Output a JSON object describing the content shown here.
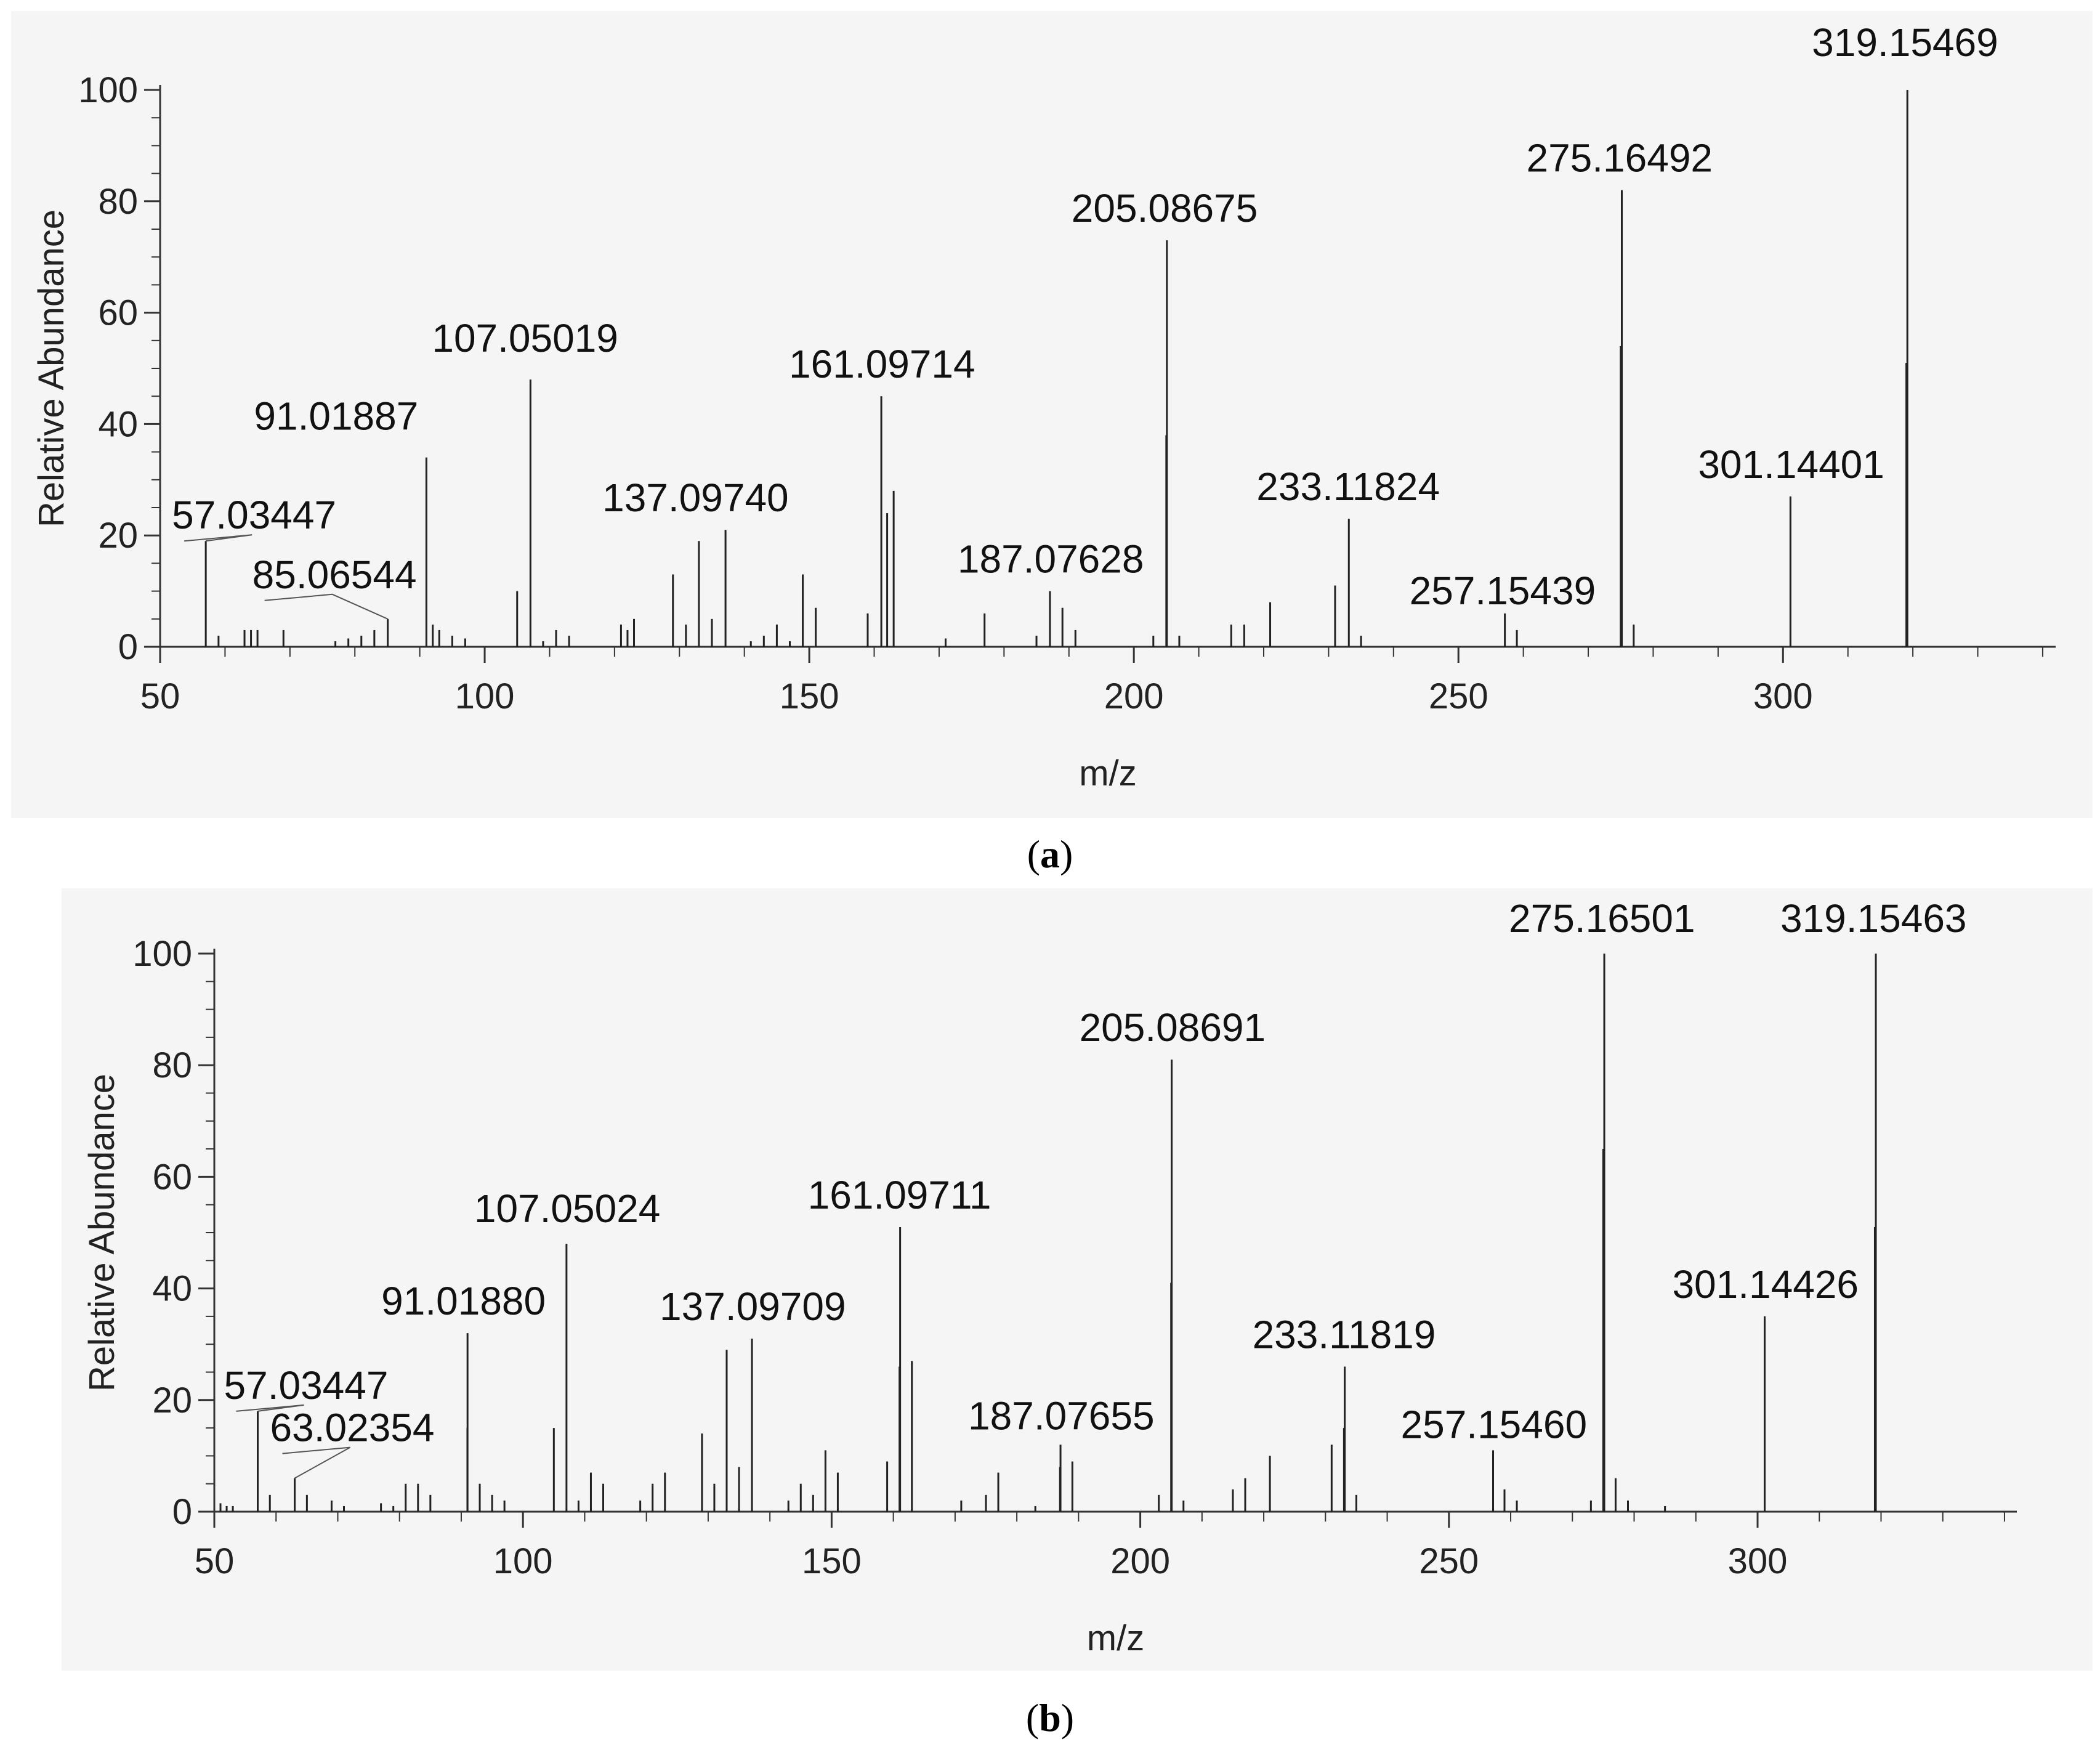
{
  "chart_data": [
    {
      "type": "bar",
      "panel_label": "a",
      "xlabel": "m/z",
      "ylabel": "Relative Abundance",
      "xlim": [
        50,
        342
      ],
      "ylim": [
        0,
        100
      ],
      "xticks": [
        50,
        100,
        150,
        200,
        250,
        300
      ],
      "yticks": [
        0,
        20,
        40,
        60,
        80,
        100
      ],
      "grid": false,
      "labeled_peaks": [
        {
          "mz": 57.03447,
          "intensity": 19,
          "label": "57.03447"
        },
        {
          "mz": 85.06544,
          "intensity": 5,
          "label": "85.06544"
        },
        {
          "mz": 91.01887,
          "intensity": 34,
          "label": "91.01887"
        },
        {
          "mz": 107.05019,
          "intensity": 48,
          "label": "107.05019"
        },
        {
          "mz": 137.0974,
          "intensity": 21,
          "label": "137.09740"
        },
        {
          "mz": 161.09714,
          "intensity": 45,
          "label": "161.09714"
        },
        {
          "mz": 187.07628,
          "intensity": 10,
          "label": "187.07628"
        },
        {
          "mz": 205.08675,
          "intensity": 73,
          "label": "205.08675"
        },
        {
          "mz": 233.11824,
          "intensity": 23,
          "label": "233.11824"
        },
        {
          "mz": 257.15439,
          "intensity": 6,
          "label": "257.15439"
        },
        {
          "mz": 275.16492,
          "intensity": 82,
          "label": "275.16492"
        },
        {
          "mz": 301.14401,
          "intensity": 27,
          "label": "301.14401"
        },
        {
          "mz": 319.15469,
          "intensity": 100,
          "label": "319.15469"
        }
      ],
      "minor_peaks": [
        [
          59,
          2
        ],
        [
          63,
          3
        ],
        [
          64,
          3
        ],
        [
          65,
          3
        ],
        [
          69,
          3
        ],
        [
          77,
          1
        ],
        [
          79,
          1.5
        ],
        [
          81,
          2
        ],
        [
          83,
          3
        ],
        [
          92,
          4
        ],
        [
          93,
          3
        ],
        [
          95,
          2
        ],
        [
          97,
          1.5
        ],
        [
          105,
          10
        ],
        [
          109,
          1
        ],
        [
          111,
          3
        ],
        [
          113,
          2
        ],
        [
          121,
          4
        ],
        [
          122,
          3
        ],
        [
          123,
          5
        ],
        [
          129,
          13
        ],
        [
          131,
          4
        ],
        [
          133,
          19
        ],
        [
          135,
          5
        ],
        [
          141,
          1
        ],
        [
          143,
          2
        ],
        [
          145,
          4
        ],
        [
          147,
          1
        ],
        [
          149,
          13
        ],
        [
          151,
          7
        ],
        [
          159,
          6
        ],
        [
          162,
          24
        ],
        [
          163,
          28
        ],
        [
          171,
          1.5
        ],
        [
          177,
          6
        ],
        [
          185,
          2
        ],
        [
          189,
          7
        ],
        [
          191,
          3
        ],
        [
          203,
          2
        ],
        [
          205,
          38
        ],
        [
          207,
          2
        ],
        [
          215,
          4
        ],
        [
          217,
          4
        ],
        [
          221,
          8
        ],
        [
          231,
          11
        ],
        [
          235,
          2
        ],
        [
          259,
          3
        ],
        [
          275,
          54
        ],
        [
          277,
          4
        ],
        [
          319,
          51
        ]
      ]
    },
    {
      "type": "bar",
      "panel_label": "b",
      "xlabel": "m/z",
      "ylabel": "Relative Abundance",
      "xlim": [
        50,
        342
      ],
      "ylim": [
        0,
        100
      ],
      "xticks": [
        50,
        100,
        150,
        200,
        250,
        300
      ],
      "yticks": [
        0,
        20,
        40,
        60,
        80,
        100
      ],
      "grid": false,
      "labeled_peaks": [
        {
          "mz": 57.03447,
          "intensity": 18,
          "label": "57.03447"
        },
        {
          "mz": 63.02354,
          "intensity": 6,
          "label": "63.02354"
        },
        {
          "mz": 91.0188,
          "intensity": 32,
          "label": "91.01880"
        },
        {
          "mz": 107.05024,
          "intensity": 48,
          "label": "107.05024"
        },
        {
          "mz": 137.09709,
          "intensity": 31,
          "label": "137.09709"
        },
        {
          "mz": 161.09711,
          "intensity": 51,
          "label": "161.09711"
        },
        {
          "mz": 187.07655,
          "intensity": 12,
          "label": "187.07655"
        },
        {
          "mz": 205.08691,
          "intensity": 81,
          "label": "205.08691"
        },
        {
          "mz": 233.11819,
          "intensity": 26,
          "label": "233.11819"
        },
        {
          "mz": 257.1546,
          "intensity": 11,
          "label": "257.15460"
        },
        {
          "mz": 275.16501,
          "intensity": 100,
          "label": "275.16501"
        },
        {
          "mz": 301.14426,
          "intensity": 35,
          "label": "301.14426"
        },
        {
          "mz": 319.15463,
          "intensity": 100,
          "label": "319.15463"
        }
      ],
      "minor_peaks": [
        [
          51,
          1.5
        ],
        [
          52,
          1
        ],
        [
          53,
          1
        ],
        [
          59,
          3
        ],
        [
          65,
          3
        ],
        [
          69,
          2
        ],
        [
          71,
          1
        ],
        [
          77,
          1.5
        ],
        [
          79,
          1
        ],
        [
          81,
          5
        ],
        [
          83,
          5
        ],
        [
          85,
          3
        ],
        [
          91,
          15
        ],
        [
          93,
          5
        ],
        [
          95,
          3
        ],
        [
          97,
          2
        ],
        [
          105,
          15
        ],
        [
          109,
          2
        ],
        [
          111,
          7
        ],
        [
          113,
          5
        ],
        [
          119,
          2
        ],
        [
          121,
          5
        ],
        [
          123,
          7
        ],
        [
          129,
          14
        ],
        [
          131,
          5
        ],
        [
          133,
          29
        ],
        [
          135,
          8
        ],
        [
          143,
          2
        ],
        [
          145,
          5
        ],
        [
          147,
          3
        ],
        [
          149,
          11
        ],
        [
          151,
          7
        ],
        [
          159,
          9
        ],
        [
          161,
          26
        ],
        [
          163,
          27
        ],
        [
          171,
          2
        ],
        [
          175,
          3
        ],
        [
          177,
          7
        ],
        [
          183,
          1
        ],
        [
          187,
          8
        ],
        [
          189,
          9
        ],
        [
          203,
          3
        ],
        [
          205,
          41
        ],
        [
          207,
          2
        ],
        [
          215,
          4
        ],
        [
          217,
          6
        ],
        [
          221,
          10
        ],
        [
          231,
          12
        ],
        [
          233,
          15
        ],
        [
          235,
          3
        ],
        [
          259,
          4
        ],
        [
          261,
          2
        ],
        [
          273,
          2
        ],
        [
          275,
          65
        ],
        [
          277,
          6
        ],
        [
          279,
          2
        ],
        [
          285,
          1
        ],
        [
          319,
          51
        ]
      ]
    }
  ]
}
